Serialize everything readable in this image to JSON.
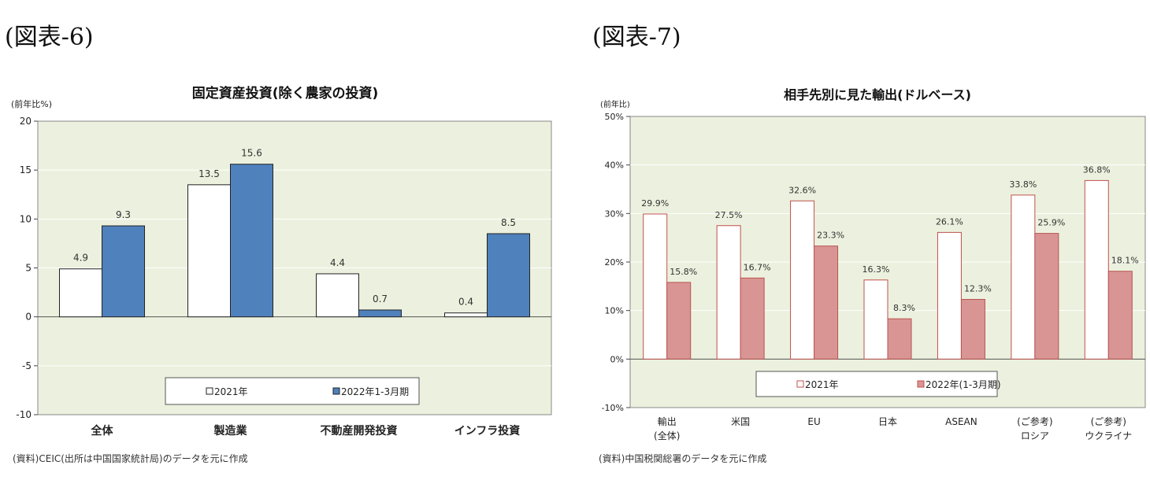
{
  "figure_labels": [
    "(図表-6)",
    "(図表-7)"
  ],
  "chart_data": [
    {
      "type": "bar",
      "title": "固定資産投資(除く農家の投資)",
      "ylabel": "(前年比%)",
      "categories": [
        "全体",
        "製造業",
        "不動産開発投資",
        "インフラ投資"
      ],
      "series": [
        {
          "name": "2021年",
          "values": [
            4.9,
            13.5,
            4.4,
            0.4
          ],
          "labels": [
            "4.9",
            "13.5",
            "4.4",
            "0.4"
          ],
          "color": "#ffffff"
        },
        {
          "name": "2022年1-3月期",
          "values": [
            9.3,
            15.6,
            0.7,
            8.5
          ],
          "labels": [
            "9.3",
            "15.6",
            "0.7",
            "8.5"
          ],
          "color": "#4f81bd"
        }
      ],
      "ylim": [
        -10,
        20
      ],
      "yticks": [
        20,
        15,
        10,
        5,
        0,
        -5,
        -10
      ],
      "ytick_labels": [
        "20",
        "15",
        "10",
        "5",
        "0",
        "-5",
        "-10"
      ],
      "legend_position": "bottom-inside",
      "grid": true,
      "background": "#ebf1de",
      "source": "(資料)CEIC(出所は中国国家統計局)のデータを元に作成"
    },
    {
      "type": "bar",
      "title": "相手先別に見た輸出(ドルベース)",
      "ylabel": "(前年比)",
      "categories": [
        "輸出\n(全体)",
        "米国",
        "EU",
        "日本",
        "ASEAN",
        "(ご参考)\nロシア",
        "(ご参考)\nウクライナ"
      ],
      "series": [
        {
          "name": "2021年",
          "values": [
            29.9,
            27.5,
            32.6,
            16.3,
            26.1,
            33.8,
            36.8
          ],
          "labels": [
            "29.9%",
            "27.5%",
            "32.6%",
            "16.3%",
            "26.1%",
            "33.8%",
            "36.8%"
          ],
          "color": "#ffffff"
        },
        {
          "name": "2022年(1-3月期)",
          "values": [
            15.8,
            16.7,
            23.3,
            8.3,
            12.3,
            25.9,
            18.1
          ],
          "labels": [
            "15.8%",
            "16.7%",
            "23.3%",
            "8.3%",
            "12.3%",
            "25.9%",
            "18.1%"
          ],
          "color": "#d99594"
        }
      ],
      "ylim": [
        -10,
        50
      ],
      "yticks": [
        50,
        40,
        30,
        20,
        10,
        0,
        -10
      ],
      "ytick_labels": [
        "50%",
        "40%",
        "30%",
        "20%",
        "10%",
        "0%",
        "-10%"
      ],
      "legend_position": "bottom-inside",
      "grid": true,
      "background": "#ebf1de",
      "source": "(資料)中国税関総署のデータを元に作成"
    }
  ]
}
